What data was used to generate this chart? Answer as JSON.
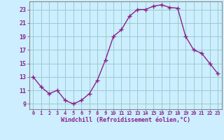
{
  "x": [
    0,
    1,
    2,
    3,
    4,
    5,
    6,
    7,
    8,
    9,
    10,
    11,
    12,
    13,
    14,
    15,
    16,
    17,
    18,
    19,
    20,
    21,
    22,
    23
  ],
  "y": [
    13,
    11.5,
    10.5,
    11,
    9.5,
    9,
    9.5,
    10.5,
    12.5,
    15.5,
    19,
    20,
    22,
    23,
    23,
    23.5,
    23.7,
    23.3,
    23.2,
    19,
    17,
    16.5,
    15,
    13.5
  ],
  "line_color": "#882288",
  "marker_color": "#882288",
  "bg_color": "#cceeff",
  "grid_color": "#99cccc",
  "xlabel": "Windchill (Refroidissement éolien,°C)",
  "xlabel_color": "#882288",
  "ylabel_ticks": [
    9,
    11,
    13,
    15,
    17,
    19,
    21,
    23
  ],
  "xtick_labels": [
    "0",
    "1",
    "2",
    "3",
    "4",
    "5",
    "6",
    "7",
    "8",
    "9",
    "10",
    "11",
    "12",
    "13",
    "14",
    "15",
    "16",
    "17",
    "18",
    "19",
    "20",
    "21",
    "22",
    "23"
  ],
  "xlim": [
    -0.5,
    23.5
  ],
  "ylim": [
    8.2,
    24.2
  ],
  "tick_color": "#882288",
  "axis_color": "#888888"
}
